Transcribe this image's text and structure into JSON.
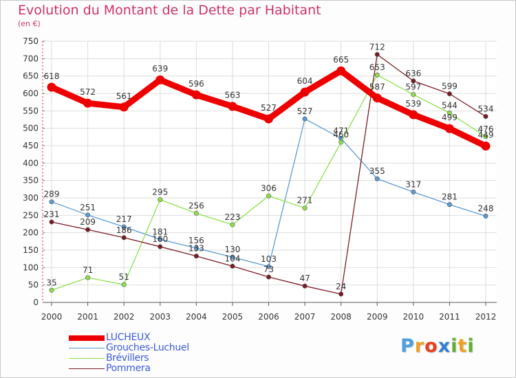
{
  "chart_data": {
    "type": "line",
    "title": "Evolution du Montant de la Dette par Habitant",
    "subtitle": "(en €)",
    "x": [
      "2000",
      "2001",
      "2002",
      "2003",
      "2004",
      "2005",
      "2006",
      "2007",
      "2008",
      "2009",
      "2010",
      "2011",
      "2012"
    ],
    "ylim": [
      0,
      750
    ],
    "yticks": [
      0,
      50,
      100,
      150,
      200,
      250,
      300,
      350,
      400,
      450,
      500,
      550,
      600,
      650,
      700,
      750
    ],
    "grid": true,
    "legend_position": "bottom-left",
    "series": [
      {
        "name": "LUCHEUX",
        "color": "#ee0000",
        "values": [
          618,
          572,
          561,
          639,
          596,
          563,
          527,
          604,
          665,
          587,
          539,
          499,
          449
        ]
      },
      {
        "name": "Grouches-Luchuel",
        "color": "#5b9bd5",
        "values": [
          289,
          251,
          217,
          181,
          156,
          130,
          103,
          527,
          471,
          355,
          317,
          281,
          248
        ]
      },
      {
        "name": "Brévillers",
        "color": "#8ee04a",
        "values": [
          35,
          71,
          51,
          295,
          256,
          223,
          306,
          271,
          460,
          653,
          597,
          544,
          476
        ]
      },
      {
        "name": "Pommera",
        "color": "#7a1a24",
        "values": [
          231,
          209,
          186,
          160,
          133,
          104,
          73,
          47,
          24,
          712,
          636,
          599,
          534
        ]
      }
    ]
  },
  "brand": {
    "letters": [
      "P",
      "r",
      "o",
      "x",
      "i",
      "t",
      "i"
    ],
    "colors": [
      "#4aa0e0",
      "#f0a020",
      "#e84020",
      "#3080d0",
      "#60b030",
      "#f0a020",
      "#60b030"
    ]
  }
}
